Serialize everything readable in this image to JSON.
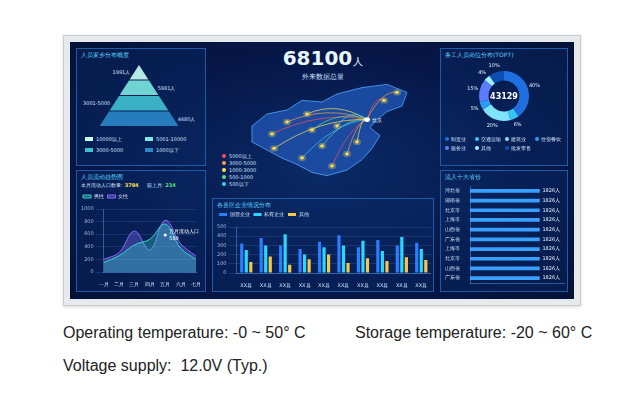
{
  "screen": {
    "headline": {
      "value": "68100",
      "unit": "人",
      "label": "外来数据总量"
    },
    "map": {
      "hub": "北京",
      "legend": [
        {
          "label": "5000以上",
          "color": "#ff4d4d"
        },
        {
          "label": "3000-5000",
          "color": "#ff9f40"
        },
        {
          "label": "1000-3000",
          "color": "#ffe14d"
        },
        {
          "label": "500-1000",
          "color": "#5ee07a"
        },
        {
          "label": "500以下",
          "color": "#3ec9ff"
        }
      ]
    },
    "pyramid": {
      "title": "人员家乡分布概度",
      "levels": [
        {
          "name": "10000以上",
          "text": "1991人",
          "color": "#c8fff4"
        },
        {
          "name": "5001-10000",
          "text": "5981人",
          "color": "#7ee8e0"
        },
        {
          "name": "3000-5000",
          "text": "3001-5000",
          "color": "#3fc0d0"
        },
        {
          "name": "1000以下",
          "text": "4480人",
          "color": "#2a86c8"
        }
      ]
    },
    "flow_stats": [
      {
        "label": "本月流动人口数量:",
        "value": "3784"
      },
      {
        "label": "较上月:",
        "value": "234"
      }
    ]
  },
  "chart_data": [
    {
      "type": "line",
      "title": "人员流动趋势图",
      "categories": [
        "一月",
        "二月",
        "三月",
        "四月",
        "五月",
        "六月",
        "七月"
      ],
      "series": [
        {
          "name": "男性",
          "color": "#31d7c8",
          "values": [
            150,
            260,
            430,
            520,
            760,
            380,
            200
          ]
        },
        {
          "name": "女性",
          "color": "#8a6cff",
          "values": [
            200,
            310,
            650,
            350,
            820,
            450,
            250
          ]
        }
      ],
      "ylim": [
        0,
        1000
      ],
      "yticks": [
        0,
        200,
        400,
        600,
        800,
        1000
      ],
      "grid": true,
      "legend": "top",
      "annotations": [
        {
          "category": "五月",
          "text": "五月流动人口",
          "value": 589
        }
      ]
    },
    {
      "type": "bar",
      "title": "各县区企业情况分布",
      "categories": [
        "XX县",
        "XX县",
        "XX县",
        "XX县",
        "XX县",
        "XX县",
        "XX县",
        "XX县",
        "XX县",
        "XX县"
      ],
      "series": [
        {
          "name": "国营企业",
          "color": "#2a7fff",
          "values": [
            320,
            380,
            300,
            260,
            340,
            410,
            280,
            360,
            300,
            330
          ]
        },
        {
          "name": "私有企业",
          "color": "#2ad7ff",
          "values": [
            250,
            300,
            420,
            200,
            280,
            300,
            350,
            240,
            390,
            260
          ]
        },
        {
          "name": "其他",
          "color": "#f2c94c",
          "values": [
            120,
            180,
            90,
            150,
            200,
            110,
            160,
            130,
            170,
            140
          ]
        }
      ],
      "ylim": [
        0,
        500
      ],
      "yticks": [
        0,
        100,
        200,
        300,
        400,
        500
      ],
      "grid": true,
      "legend": "top"
    },
    {
      "type": "doughnut",
      "title": "务工人员岗位分布(TOP7)",
      "center_text": "43129",
      "categories": [
        "制造业",
        "交通运输",
        "建筑业",
        "住宿餐饮",
        "服务业",
        "其他",
        "批发零售"
      ],
      "values": [
        40,
        6,
        20,
        5,
        15,
        4,
        10
      ],
      "value_labels": [
        "40%",
        "6%",
        "20%",
        "5%",
        "15%",
        "4%",
        "10%"
      ],
      "colors": [
        "#1f6fe0",
        "#34c6f4",
        "#7fe3ff",
        "#2a9df4",
        "#5b7cff",
        "#a0f0ff",
        "#0e4fb3"
      ],
      "data_labels": true,
      "legend": "bottom"
    },
    {
      "type": "bar",
      "orientation": "horizontal",
      "title": "流入十大省份",
      "categories": [
        "河北省",
        "湖南省",
        "北京市",
        "上海市",
        "山西省",
        "广东省",
        "上海市",
        "北京市",
        "山西省",
        "广东省"
      ],
      "values": [
        1826,
        1826,
        1826,
        1826,
        1826,
        1826,
        1826,
        1826,
        1826,
        1826
      ],
      "value_labels": [
        "1826人",
        "1826人",
        "1826人",
        "1826人",
        "1826人",
        "1826人",
        "1826人",
        "1826人",
        "1826人",
        "1826人"
      ],
      "color": "#3aa0ff",
      "xlim": [
        0,
        2500
      ],
      "grid": false,
      "data_labels": true,
      "tick_labels": "y"
    }
  ],
  "specs": [
    [
      "Operating temperature: -0 ~ 50° C",
      "Storage temperature: -20 ~ 60° C"
    ],
    [
      "Voltage supply:  12.0V (Typ.)"
    ]
  ]
}
